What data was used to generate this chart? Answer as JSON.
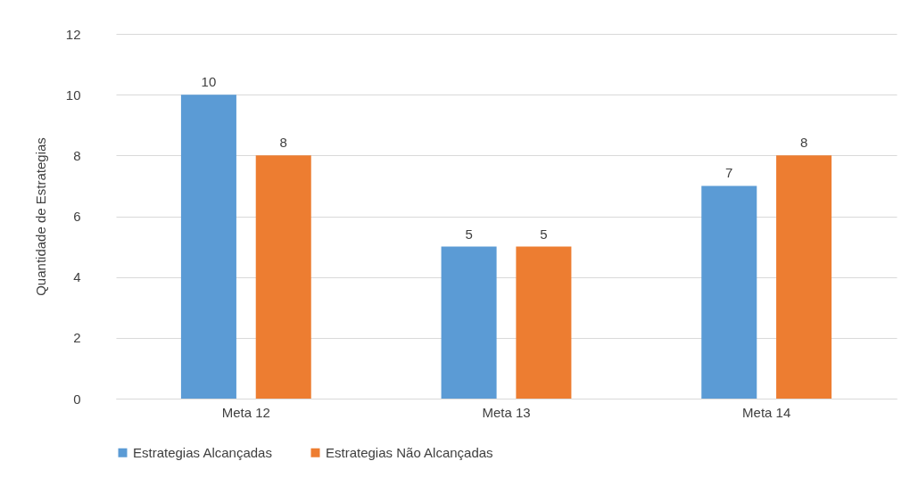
{
  "chart_data": {
    "type": "bar",
    "categories": [
      "Meta 12",
      "Meta 13",
      "Meta 14"
    ],
    "ylabel": "Quantidade de Estrategias",
    "series": [
      {
        "name": "Estrategias Alcançadas",
        "color": "#5b9bd5",
        "values": [
          10,
          5,
          7
        ]
      },
      {
        "name": "Estrategias Não Alcançadas",
        "color": "#ed7d31",
        "values": [
          8,
          5,
          8
        ]
      }
    ],
    "ylim": [
      0,
      12
    ],
    "yticks": [
      0,
      2,
      4,
      6,
      8,
      10,
      12
    ],
    "grid": "y",
    "legend": "bottom",
    "data_labels": true
  }
}
